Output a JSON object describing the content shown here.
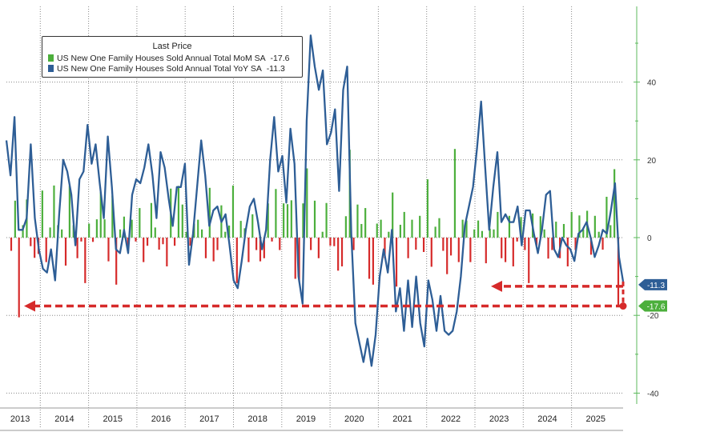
{
  "legend": {
    "title": "Last Price",
    "items": [
      {
        "label": "US New One Family Houses Sold Annual Total MoM SA",
        "value": "-17.6",
        "color": "#4caf3c"
      },
      {
        "label": "US New One Family Houses Sold Annual Total YoY SA",
        "value": "-11.3",
        "color": "#2e5e96"
      }
    ]
  },
  "callouts": {
    "yoy_last": {
      "text": "-11.3",
      "color": "#2e5e96"
    },
    "mom_last": {
      "text": "-17.6",
      "color": "#4caf3c"
    }
  },
  "colors": {
    "mom_positive": "#4caf3c",
    "mom_negative": "#d62a2a",
    "yoy_line": "#2e5e96",
    "arrows": "#d62a2a",
    "grid": "#888888"
  },
  "chart_data": {
    "type": "bar",
    "x_axis_labels": [
      "2013",
      "2014",
      "2015",
      "2016",
      "2017",
      "2018",
      "2019",
      "2020",
      "2021",
      "2022",
      "2023",
      "2024",
      "2025"
    ],
    "y_axis": {
      "ticks": [
        40,
        20,
        0,
        -20,
        -40
      ],
      "ylim": [
        -40,
        60
      ],
      "position": "right",
      "grid": true
    },
    "series": [
      {
        "name": "US New One Family Houses Sold Annual Total MoM SA",
        "type": "bar",
        "last": -17.6,
        "values": [
          -3.4,
          9.5,
          -20.5,
          3.2,
          9.8,
          -2.2,
          -5.2,
          -4.2,
          12.1,
          -6.3,
          2.6,
          13.4,
          3.2,
          2.1,
          -7.2,
          13.4,
          3.2,
          -5.3,
          -1.0,
          -11.7,
          3.6,
          -1.1,
          4.7,
          11.7,
          4.7,
          -6.1,
          10.8,
          -12.1,
          2.1,
          5.4,
          -2.2,
          4.6,
          -1.0,
          7.6,
          -6.3,
          -2.1,
          8.9,
          2.6,
          -3.1,
          -1.7,
          -7.4,
          12.6,
          -2.1,
          13.3,
          8.5,
          1.5,
          -2.1,
          3.6,
          4.6,
          2.1,
          -5.3,
          12.8,
          -6.1,
          -3.2,
          8.3,
          1.5,
          3.1,
          13.4,
          -11.7,
          4.3,
          2.4,
          -6.3,
          6.0,
          -3.2,
          -6.1,
          -5.3,
          8.8,
          -1.0,
          12.5,
          -3.2,
          8.8,
          8.6,
          9.6,
          -10.6,
          -11.4,
          8.8,
          17.8,
          -3.2,
          9.5,
          -5.3,
          1.5,
          8.9,
          -2.1,
          -2.2,
          -8.5,
          -7.4,
          5.5,
          22.6,
          -3.2,
          8.5,
          3.5,
          7.6,
          -10.6,
          -12.1,
          3.6,
          4.6,
          -5.3,
          1.5,
          11.6,
          -12.6,
          3.3,
          6.6,
          -5.3,
          4.6,
          -3.1,
          5.6,
          -3.7,
          15.0,
          -7.5,
          2.8,
          5.0,
          -3.4,
          -9.4,
          -4.6,
          22.8,
          -6.3,
          4.6,
          4.4,
          -6.3,
          2.1,
          4.4,
          1.7,
          -6.6,
          2.3,
          2.1,
          6.6,
          -5.3,
          -6.3,
          5.6,
          -7.4,
          -1.0,
          5.3,
          -3.2,
          -11.7,
          6.2,
          -2.1,
          5.5,
          2.1,
          -5.4,
          -3.2,
          4.1,
          -5.3,
          3.5,
          -7.4,
          6.6,
          -3.2,
          5.7,
          2.1,
          6.9,
          -4.4,
          5.6,
          1.5,
          -3.1,
          10.5,
          3.2,
          17.6,
          -17.6
        ]
      },
      {
        "name": "US New One Family Houses Sold Annual Total YoY SA",
        "type": "line",
        "last": -11.3,
        "values": [
          25.0,
          16.0,
          31.0,
          2.0,
          2.0,
          5.0,
          24.0,
          5.0,
          -3.0,
          -8.0,
          -9.0,
          -3.0,
          -11.0,
          6.0,
          20.0,
          17.0,
          11.0,
          -2.0,
          15.0,
          17.0,
          29.0,
          19.0,
          24.0,
          14.0,
          5.0,
          26.0,
          13.0,
          -3.0,
          -4.0,
          2.0,
          -4.0,
          11.0,
          15.0,
          14.0,
          18.0,
          24.0,
          16.0,
          5.0,
          22.0,
          18.0,
          10.0,
          3.0,
          13.0,
          13.0,
          19.0,
          -7.0,
          1.0,
          13.0,
          25.0,
          16.0,
          3.0,
          7.0,
          8.0,
          4.0,
          6.0,
          -2.0,
          -11.0,
          -13.0,
          -6.0,
          2.0,
          8.0,
          10.0,
          4.0,
          -3.0,
          2.0,
          20.0,
          31.0,
          17.0,
          21.0,
          9.0,
          28.0,
          19.0,
          -10.0,
          -17.0,
          30.0,
          52.0,
          44.0,
          38.0,
          43.0,
          24.0,
          27.0,
          33.0,
          12.0,
          38.0,
          44.0,
          1.0,
          -22.0,
          -27.0,
          -32.0,
          -26.0,
          -33.0,
          -25.0,
          -10.0,
          -3.0,
          -9.0,
          2.0,
          -19.0,
          -13.0,
          -24.0,
          -11.0,
          -23.0,
          -10.0,
          -22.0,
          -28.0,
          -11.0,
          -16.0,
          -24.0,
          -15.0,
          -24.0,
          -25.0,
          -24.0,
          -19.0,
          -10.0,
          3.0,
          8.0,
          13.0,
          23.0,
          35.0,
          18.0,
          2.0,
          13.0,
          22.0,
          4.0,
          6.0,
          4.0,
          4.0,
          8.0,
          -2.0,
          7.0,
          7.0,
          1.0,
          -4.0,
          2.0,
          11.0,
          12.0,
          -3.0,
          -5.0,
          0.0,
          -2.0,
          -3.0,
          -6.0,
          1.0,
          2.0,
          4.0,
          0.0,
          -5.0,
          -2.0,
          2.0,
          1.0,
          7.0,
          14.0,
          -5.0,
          -11.3
        ]
      }
    ]
  }
}
